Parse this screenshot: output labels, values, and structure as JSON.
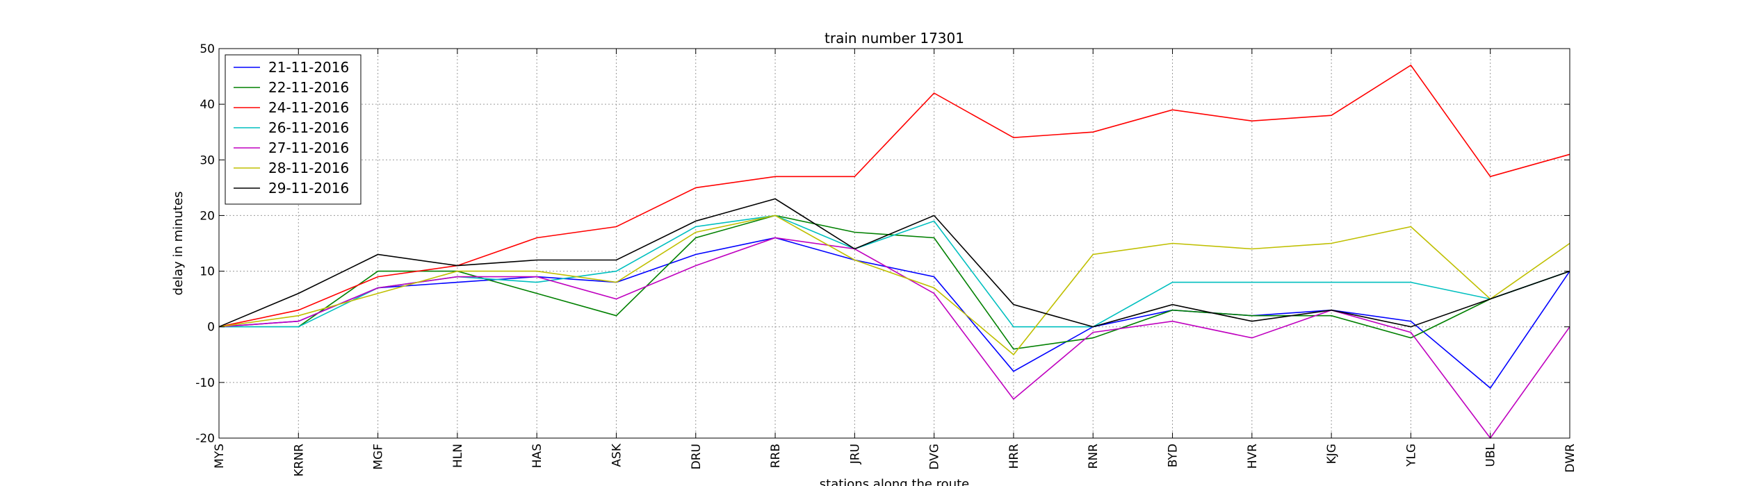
{
  "chart_data": {
    "type": "line",
    "title": "train number 17301",
    "xlabel": "stations along the route",
    "ylabel": "delay in minutes",
    "ylim": [
      -20,
      50
    ],
    "yticks": [
      -20,
      -10,
      0,
      10,
      20,
      30,
      40,
      50
    ],
    "grid": true,
    "legend_position": "top-left",
    "categories": [
      "MYS",
      "KRNR",
      "MGF",
      "HLN",
      "HAS",
      "ASK",
      "DRU",
      "RRB",
      "JRU",
      "DVG",
      "HRR",
      "RNR",
      "BYD",
      "HVR",
      "KJG",
      "YLG",
      "UBL",
      "DWR"
    ],
    "series": [
      {
        "name": "21-11-2016",
        "color": "#0000ff",
        "values": [
          0,
          1,
          7,
          8,
          9,
          8,
          13,
          16,
          12,
          9,
          -8,
          0,
          3,
          2,
          3,
          1,
          -11,
          10
        ]
      },
      {
        "name": "22-11-2016",
        "color": "#008000",
        "values": [
          0,
          0,
          10,
          10,
          6,
          2,
          16,
          20,
          17,
          16,
          -4,
          -2,
          3,
          2,
          2,
          -2,
          5,
          10
        ]
      },
      {
        "name": "24-11-2016",
        "color": "#ff0000",
        "values": [
          0,
          3,
          9,
          11,
          16,
          18,
          25,
          27,
          27,
          42,
          34,
          35,
          39,
          37,
          38,
          47,
          27,
          31
        ]
      },
      {
        "name": "26-11-2016",
        "color": "#00bfbf",
        "values": [
          0,
          0,
          7,
          9,
          8,
          10,
          18,
          20,
          14,
          19,
          0,
          0,
          8,
          8,
          8,
          8,
          5,
          10
        ]
      },
      {
        "name": "27-11-2016",
        "color": "#bf00bf",
        "values": [
          0,
          1,
          7,
          9,
          9,
          5,
          11,
          16,
          14,
          6,
          -13,
          -1,
          1,
          -2,
          3,
          -1,
          -20,
          0
        ]
      },
      {
        "name": "28-11-2016",
        "color": "#bfbf00",
        "values": [
          0,
          2,
          6,
          10,
          10,
          8,
          17,
          20,
          12,
          7,
          -5,
          13,
          15,
          14,
          15,
          18,
          5,
          15
        ]
      },
      {
        "name": "29-11-2016",
        "color": "#000000",
        "values": [
          0,
          6,
          13,
          11,
          12,
          12,
          19,
          23,
          14,
          20,
          4,
          0,
          4,
          1,
          3,
          0,
          5,
          10
        ]
      }
    ]
  }
}
